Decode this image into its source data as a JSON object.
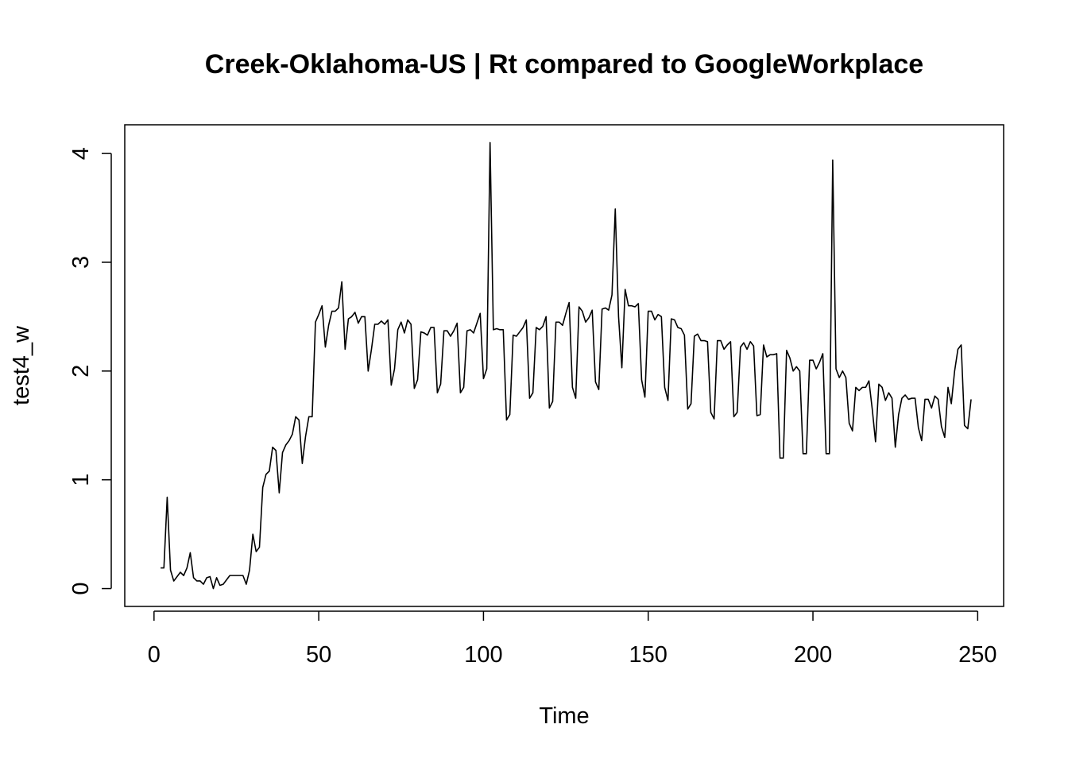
{
  "chart_data": {
    "type": "line",
    "title": "Creek-Oklahoma-US | Rt compared to GoogleWorkplace",
    "x_label": "Time",
    "y_label": "test4_w",
    "x": [
      2,
      3,
      4,
      5,
      6,
      7,
      8,
      9,
      10,
      11,
      12,
      13,
      14,
      15,
      16,
      17,
      18,
      19,
      20,
      21,
      22,
      23,
      24,
      25,
      26,
      27,
      28,
      29,
      30,
      31,
      32,
      33,
      34,
      35,
      36,
      37,
      38,
      39,
      40,
      41,
      42,
      43,
      44,
      45,
      46,
      47,
      48,
      49,
      50,
      51,
      52,
      53,
      54,
      55,
      56,
      57,
      58,
      59,
      60,
      61,
      62,
      63,
      64,
      65,
      66,
      67,
      68,
      69,
      70,
      71,
      72,
      73,
      74,
      75,
      76,
      77,
      78,
      79,
      80,
      81,
      82,
      83,
      84,
      85,
      86,
      87,
      88,
      89,
      90,
      91,
      92,
      93,
      94,
      95,
      96,
      97,
      98,
      99,
      100,
      101,
      102,
      103,
      104,
      105,
      106,
      107,
      108,
      109,
      110,
      111,
      112,
      113,
      114,
      115,
      116,
      117,
      118,
      119,
      120,
      121,
      122,
      123,
      124,
      125,
      126,
      127,
      128,
      129,
      130,
      131,
      132,
      133,
      134,
      135,
      136,
      137,
      138,
      139,
      140,
      141,
      142,
      143,
      144,
      145,
      146,
      147,
      148,
      149,
      150,
      151,
      152,
      153,
      154,
      155,
      156,
      157,
      158,
      159,
      160,
      161,
      162,
      163,
      164,
      165,
      166,
      167,
      168,
      169,
      170,
      171,
      172,
      173,
      174,
      175,
      176,
      177,
      178,
      179,
      180,
      181,
      182,
      183,
      184,
      185,
      186,
      187,
      188,
      189,
      190,
      191,
      192,
      193,
      194,
      195,
      196,
      197,
      198,
      199,
      200,
      201,
      202,
      203,
      204,
      205,
      206,
      207,
      208,
      209,
      210,
      211,
      212,
      213,
      214,
      215,
      216,
      217,
      218,
      219,
      220,
      221,
      222,
      223,
      224,
      225,
      226,
      227,
      228,
      229,
      230,
      231,
      232,
      233,
      234,
      235,
      236,
      237,
      238,
      239,
      240,
      241,
      242,
      243,
      244,
      245,
      246,
      247,
      248
    ],
    "series": [
      {
        "name": "test4_w",
        "color": "#000000",
        "values": [
          0.19,
          0.19,
          0.84,
          0.17,
          0.07,
          0.11,
          0.15,
          0.12,
          0.19,
          0.33,
          0.1,
          0.07,
          0.07,
          0.04,
          0.1,
          0.11,
          0.0,
          0.1,
          0.03,
          0.04,
          0.08,
          0.12,
          0.12,
          0.12,
          0.12,
          0.12,
          0.04,
          0.17,
          0.5,
          0.34,
          0.38,
          0.93,
          1.05,
          1.08,
          1.3,
          1.27,
          0.88,
          1.25,
          1.32,
          1.36,
          1.42,
          1.58,
          1.55,
          1.15,
          1.4,
          1.58,
          1.58,
          2.45,
          2.52,
          2.6,
          2.22,
          2.42,
          2.55,
          2.55,
          2.58,
          2.82,
          2.2,
          2.48,
          2.5,
          2.54,
          2.44,
          2.5,
          2.5,
          2.0,
          2.2,
          2.43,
          2.43,
          2.46,
          2.43,
          2.47,
          1.87,
          2.02,
          2.38,
          2.45,
          2.35,
          2.47,
          2.43,
          1.84,
          1.92,
          2.36,
          2.35,
          2.33,
          2.4,
          2.4,
          1.8,
          1.88,
          2.37,
          2.37,
          2.32,
          2.37,
          2.44,
          1.8,
          1.85,
          2.37,
          2.38,
          2.35,
          2.44,
          2.53,
          1.93,
          2.02,
          4.1,
          2.38,
          2.39,
          2.38,
          2.38,
          1.55,
          1.6,
          2.33,
          2.32,
          2.36,
          2.4,
          2.47,
          1.75,
          1.8,
          2.4,
          2.38,
          2.41,
          2.5,
          1.66,
          1.72,
          2.45,
          2.45,
          2.42,
          2.53,
          2.63,
          1.85,
          1.75,
          2.59,
          2.55,
          2.45,
          2.49,
          2.56,
          1.9,
          1.83,
          2.57,
          2.58,
          2.56,
          2.7,
          3.49,
          2.5,
          2.03,
          2.75,
          2.6,
          2.6,
          2.59,
          2.62,
          1.92,
          1.76,
          2.55,
          2.55,
          2.47,
          2.52,
          2.5,
          1.85,
          1.73,
          2.48,
          2.47,
          2.4,
          2.39,
          2.33,
          1.65,
          1.7,
          2.32,
          2.34,
          2.28,
          2.28,
          2.27,
          1.62,
          1.56,
          2.28,
          2.28,
          2.2,
          2.24,
          2.27,
          1.58,
          1.62,
          2.22,
          2.26,
          2.2,
          2.27,
          2.23,
          1.59,
          1.6,
          2.24,
          2.13,
          2.15,
          2.15,
          2.16,
          1.2,
          1.2,
          2.19,
          2.12,
          2.0,
          2.04,
          2.0,
          1.24,
          1.24,
          2.1,
          2.1,
          2.02,
          2.08,
          2.16,
          1.24,
          1.24,
          3.94,
          2.02,
          1.94,
          2.0,
          1.94,
          1.52,
          1.45,
          1.85,
          1.82,
          1.85,
          1.85,
          1.91,
          1.65,
          1.35,
          1.88,
          1.85,
          1.73,
          1.8,
          1.75,
          1.3,
          1.6,
          1.75,
          1.78,
          1.74,
          1.75,
          1.75,
          1.48,
          1.36,
          1.74,
          1.74,
          1.66,
          1.77,
          1.74,
          1.49,
          1.39,
          1.85,
          1.7,
          2.0,
          2.2,
          2.24,
          1.5,
          1.47,
          1.74
        ]
      }
    ],
    "xlim": [
      -8.88,
      257.88
    ],
    "xticks": [
      0,
      50,
      100,
      150,
      200,
      250
    ],
    "ylim": [
      -0.164,
      4.264
    ],
    "yticks": [
      0,
      1,
      2,
      3,
      4
    ]
  }
}
